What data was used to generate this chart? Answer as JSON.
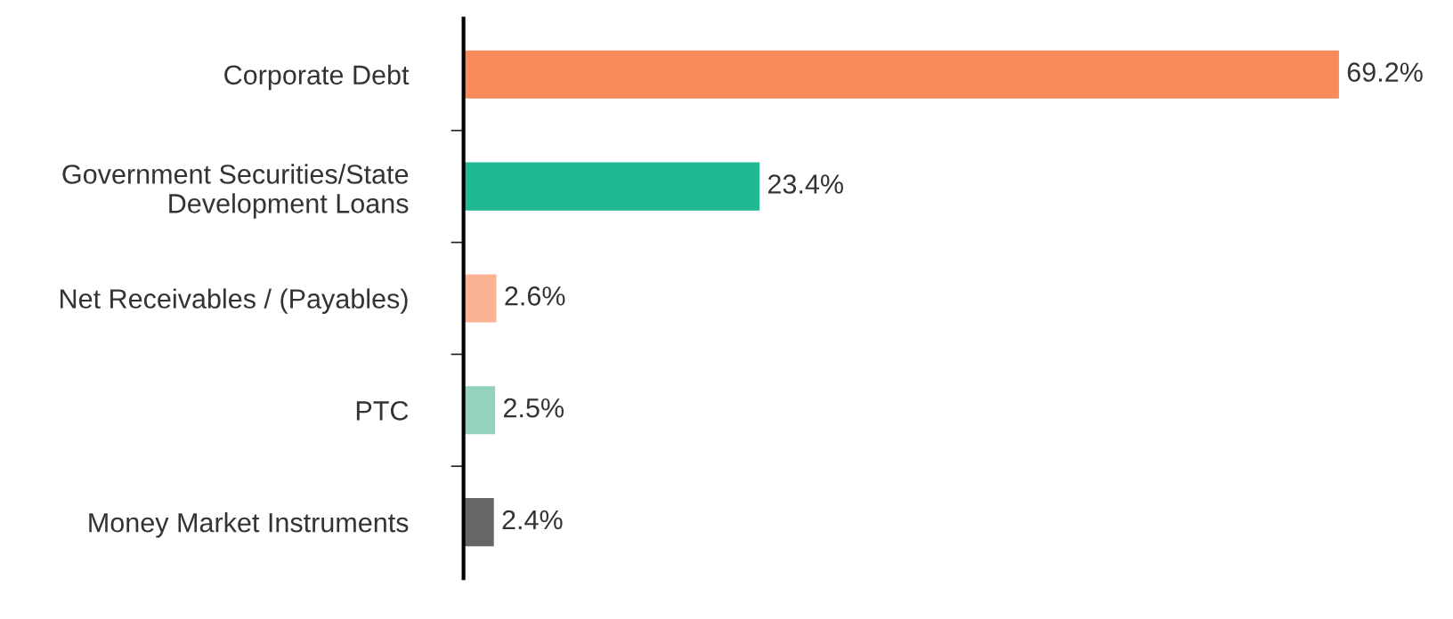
{
  "chart_data": {
    "type": "bar",
    "orientation": "horizontal",
    "categories": [
      "Corporate Debt",
      "Government Securities/State\nDevelopment Loans",
      "Net Receivables / (Payables)",
      "PTC",
      "Money Market Instruments"
    ],
    "values": [
      69.2,
      23.4,
      2.6,
      2.5,
      2.4
    ],
    "colors": [
      "#f98a5c",
      "#21b894",
      "#fbb394",
      "#93d2bc",
      "#666666"
    ],
    "value_labels": [
      "69.2%",
      "23.4%",
      "2.6%",
      "2.5%",
      "2.4%"
    ],
    "tick_labels": "y"
  }
}
